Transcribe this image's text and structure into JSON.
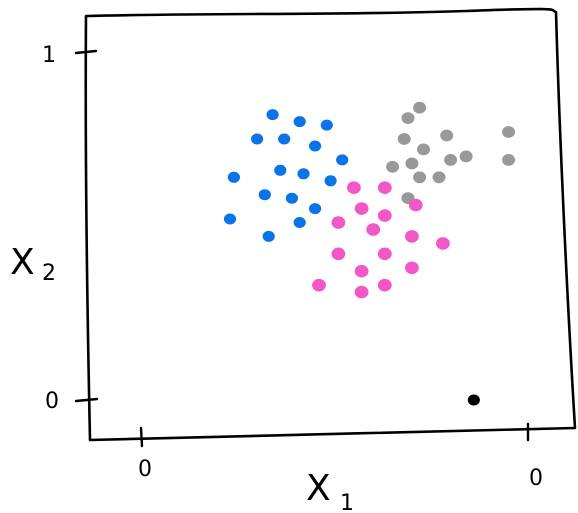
{
  "chart_data": {
    "type": "scatter",
    "title": "",
    "xlabel": "X",
    "xlabel_sub": "1",
    "ylabel": "X",
    "ylabel_sub": "2",
    "x_ticks": [
      "0",
      "0"
    ],
    "y_ticks": [
      "1",
      "0"
    ],
    "xlim": [
      0,
      1
    ],
    "ylim": [
      0,
      1
    ],
    "grid": false,
    "colors": {
      "blue": "#0a73e8",
      "gray": "#999999",
      "pink": "#f257c8",
      "black": "#000000"
    },
    "series": [
      {
        "color": "blue",
        "points": [
          [
            0.34,
            0.82
          ],
          [
            0.41,
            0.8
          ],
          [
            0.48,
            0.79
          ],
          [
            0.3,
            0.75
          ],
          [
            0.37,
            0.75
          ],
          [
            0.45,
            0.73
          ],
          [
            0.52,
            0.69
          ],
          [
            0.36,
            0.66
          ],
          [
            0.42,
            0.65
          ],
          [
            0.49,
            0.63
          ],
          [
            0.24,
            0.64
          ],
          [
            0.32,
            0.59
          ],
          [
            0.39,
            0.58
          ],
          [
            0.45,
            0.55
          ],
          [
            0.23,
            0.52
          ],
          [
            0.41,
            0.51
          ],
          [
            0.33,
            0.47
          ]
        ]
      },
      {
        "color": "gray",
        "points": [
          [
            0.69,
            0.81
          ],
          [
            0.72,
            0.84
          ],
          [
            0.79,
            0.76
          ],
          [
            0.68,
            0.75
          ],
          [
            0.73,
            0.72
          ],
          [
            0.8,
            0.69
          ],
          [
            0.84,
            0.7
          ],
          [
            0.95,
            0.77
          ],
          [
            0.95,
            0.69
          ],
          [
            0.7,
            0.68
          ],
          [
            0.65,
            0.67
          ],
          [
            0.72,
            0.64
          ],
          [
            0.77,
            0.64
          ],
          [
            0.69,
            0.58
          ]
        ]
      },
      {
        "color": "pink",
        "points": [
          [
            0.55,
            0.61
          ],
          [
            0.63,
            0.61
          ],
          [
            0.57,
            0.55
          ],
          [
            0.63,
            0.53
          ],
          [
            0.71,
            0.56
          ],
          [
            0.51,
            0.51
          ],
          [
            0.6,
            0.49
          ],
          [
            0.7,
            0.47
          ],
          [
            0.78,
            0.45
          ],
          [
            0.51,
            0.42
          ],
          [
            0.63,
            0.42
          ],
          [
            0.57,
            0.37
          ],
          [
            0.7,
            0.38
          ],
          [
            0.46,
            0.33
          ],
          [
            0.57,
            0.31
          ],
          [
            0.63,
            0.33
          ]
        ]
      },
      {
        "color": "black",
        "points": [
          [
            0.86,
            0.0
          ]
        ]
      }
    ]
  }
}
